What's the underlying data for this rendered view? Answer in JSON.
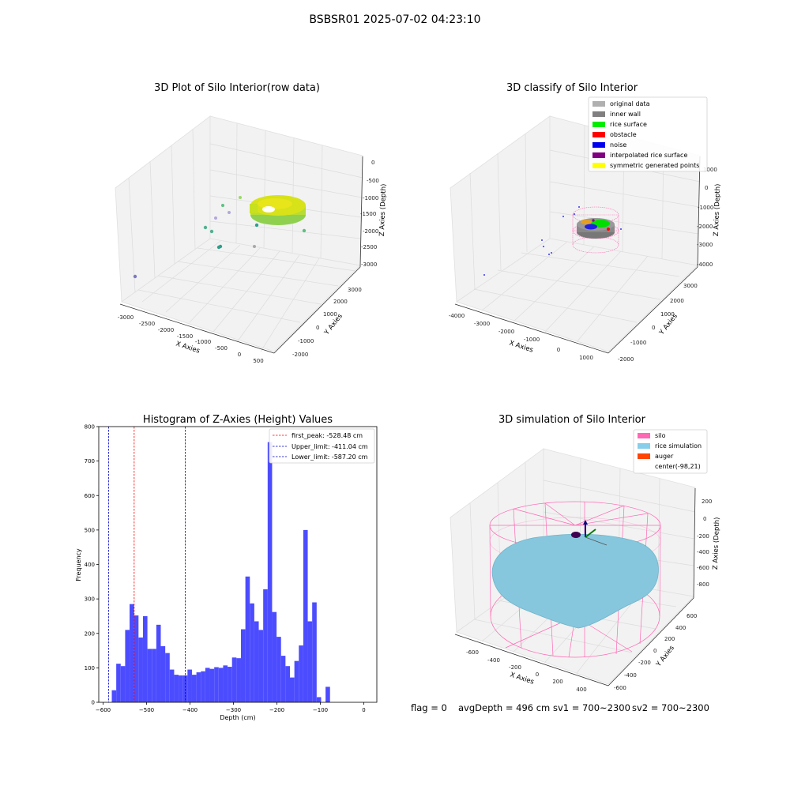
{
  "suptitle": "BSBSR01 2025-07-02 04:23:10",
  "chart_data": [
    {
      "type": "scatter",
      "title": "3D Plot of Silo Interior(row data)",
      "xlabel": "X Axies",
      "ylabel": "Y Axies",
      "zlabel": "Z Axies (Depth)",
      "x_ticks": [
        "-3000",
        "-2500",
        "-2000",
        "-1500",
        "-1000",
        "-500",
        "0",
        "500"
      ],
      "y_ticks": [
        "-2000",
        "-1000",
        "0",
        "1000",
        "2000",
        "3000"
      ],
      "z_ticks": [
        "0",
        "-500",
        "-1000",
        "-1500",
        "-2000",
        "-2500",
        "-3000"
      ]
    },
    {
      "type": "scatter",
      "title": "3D classify of Silo Interior",
      "xlabel": "X Axies",
      "ylabel": "Y Axies",
      "zlabel": "Z Axies (Depth)",
      "x_ticks": [
        "-4000",
        "-3000",
        "-2000",
        "-1000",
        "0",
        "1000"
      ],
      "y_ticks": [
        "-2000",
        "-1000",
        "0",
        "1000",
        "2000",
        "3000"
      ],
      "z_ticks": [
        "1000",
        "0",
        "-1000",
        "-2000",
        "-3000",
        "-4000"
      ],
      "legend_position": "upper-right",
      "legend": [
        {
          "label": "original data",
          "color": "#b0b0b0"
        },
        {
          "label": "inner wall",
          "color": "#808080"
        },
        {
          "label": "rice surface",
          "color": "#00ee00"
        },
        {
          "label": "obstacle",
          "color": "#ff0000"
        },
        {
          "label": "noise",
          "color": "#0000ee"
        },
        {
          "label": "interpolated rice surface",
          "color": "#800080"
        },
        {
          "label": "symmetric generated points",
          "color": "#ffff00"
        }
      ]
    },
    {
      "type": "bar",
      "title": "Histogram of Z-Axies (Height) Values",
      "xlabel": "Depth (cm)",
      "ylabel": "Frequency",
      "xlim": [
        -610,
        30
      ],
      "ylim": [
        0,
        800
      ],
      "x_ticks": [
        -600,
        -500,
        -400,
        -300,
        -200,
        -100,
        0
      ],
      "y_ticks": [
        0,
        100,
        200,
        300,
        400,
        500,
        600,
        700,
        800
      ],
      "bar_color": "#4c4cff",
      "bin_width": 10.25,
      "bin_start": -580,
      "values": [
        35,
        112,
        105,
        210,
        285,
        252,
        188,
        250,
        155,
        155,
        225,
        163,
        143,
        95,
        80,
        78,
        78,
        95,
        80,
        87,
        90,
        100,
        97,
        102,
        100,
        107,
        103,
        130,
        128,
        212,
        365,
        287,
        235,
        210,
        328,
        755,
        262,
        190,
        135,
        105,
        72,
        120,
        165,
        500,
        235,
        290,
        15,
        0,
        45
      ],
      "vlines": [
        {
          "label": "first_peak: -528.48 cm",
          "value": -528.48,
          "color": "#ff0000"
        },
        {
          "label": "Upper_limit: -411.04 cm",
          "value": -411.04,
          "color": "#0000cc"
        },
        {
          "label": "Lower_limit: -587.20 cm",
          "value": -587.2,
          "color": "#0000cc"
        }
      ],
      "legend_position": "upper-right"
    },
    {
      "type": "scatter",
      "title": "3D simulation of Silo Interior",
      "xlabel": "X Axies",
      "ylabel": "Y Axies",
      "zlabel": "Z Axies (Depth)",
      "x_ticks": [
        "-600",
        "-400",
        "-200",
        "0",
        "200",
        "400"
      ],
      "y_ticks": [
        "-600",
        "-400",
        "-200",
        "0",
        "200",
        "400",
        "600"
      ],
      "z_ticks": [
        "200",
        "0",
        "-200",
        "-400",
        "-600",
        "-800"
      ],
      "legend_position": "upper-right",
      "legend": [
        {
          "label": "silo",
          "color": "#ff69b4"
        },
        {
          "label": "rice simulation",
          "color": "#87ceeb"
        },
        {
          "label": "auger",
          "color": "#ff4500"
        },
        {
          "label": "center(-98,21)",
          "color": ""
        }
      ]
    }
  ],
  "status": {
    "flag": "flag = 0",
    "avg_depth": "avgDepth = 496 cm",
    "sv1": "sv1 = 700~2300",
    "sv2": "sv2 = 700~2300"
  }
}
